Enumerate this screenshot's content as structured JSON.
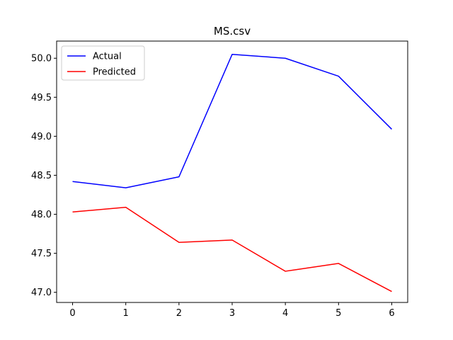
{
  "chart_data": {
    "type": "line",
    "title": "MS.csv",
    "xlabel": "",
    "ylabel": "",
    "x": [
      0,
      1,
      2,
      3,
      4,
      5,
      6
    ],
    "xlim": [
      -0.3,
      6.3
    ],
    "ylim": [
      46.87,
      50.22
    ],
    "xticks": [
      0,
      1,
      2,
      3,
      4,
      5,
      6
    ],
    "xtick_labels": [
      "0",
      "1",
      "2",
      "3",
      "4",
      "5",
      "6"
    ],
    "yticks": [
      47.0,
      47.5,
      48.0,
      48.5,
      49.0,
      49.5,
      50.0
    ],
    "ytick_labels": [
      "47.0",
      "47.5",
      "48.0",
      "48.5",
      "49.0",
      "49.5",
      "50.0"
    ],
    "grid": false,
    "legend_position": "top-left",
    "series": [
      {
        "name": "Actual",
        "color": "#0000ff",
        "values": [
          48.42,
          48.34,
          48.48,
          50.05,
          50.0,
          49.77,
          49.09
        ]
      },
      {
        "name": "Predicted",
        "color": "#ff0000",
        "values": [
          48.03,
          48.09,
          47.64,
          47.67,
          47.27,
          47.37,
          47.01
        ]
      }
    ]
  }
}
